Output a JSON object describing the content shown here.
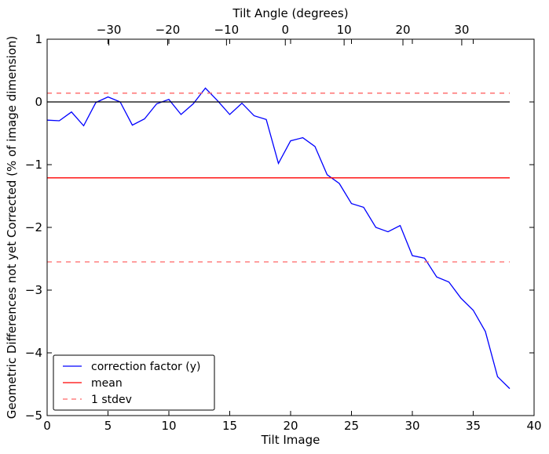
{
  "chart_data": {
    "type": "line",
    "title": "",
    "xlabel": "Tilt Image",
    "ylabel": "Geometric Differences not yet Corrected (% of image dimension)",
    "xlim": [
      0,
      40
    ],
    "ylim": [
      -5,
      1
    ],
    "xticks": [
      0,
      5,
      10,
      15,
      20,
      25,
      30,
      35,
      40
    ],
    "yticks": [
      1,
      0,
      -1,
      -2,
      -3,
      -4,
      -5
    ],
    "top_axis": {
      "label": "Tilt Angle (degrees)",
      "ticks": [
        -30,
        -20,
        -10,
        0,
        10,
        20,
        30
      ],
      "tick_labels": [
        "−30",
        "−20",
        "−10",
        "0",
        "10",
        "20",
        "30"
      ],
      "angle_at_x0": -40.5,
      "degrees_per_image": 2.07
    },
    "grid": false,
    "legend_position": "lower-left",
    "series": [
      {
        "name": "correction factor (y)",
        "color": "#0000ff",
        "style": "solid",
        "x": [
          0,
          1,
          2,
          3,
          4,
          5,
          6,
          7,
          8,
          9,
          10,
          11,
          12,
          13,
          14,
          15,
          16,
          17,
          18,
          19,
          20,
          21,
          22,
          23,
          24,
          25,
          26,
          27,
          28,
          29,
          30,
          31,
          32,
          33,
          34,
          35,
          36,
          37,
          38
        ],
        "y": [
          -0.29,
          -0.3,
          -0.16,
          -0.38,
          -0.01,
          0.08,
          0.0,
          -0.37,
          -0.27,
          -0.03,
          0.04,
          -0.2,
          -0.03,
          0.22,
          0.02,
          -0.2,
          -0.02,
          -0.22,
          -0.28,
          -0.98,
          -0.62,
          -0.57,
          -0.71,
          -1.16,
          -1.3,
          -1.62,
          -1.68,
          -2.0,
          -2.07,
          -1.97,
          -2.45,
          -2.49,
          -2.79,
          -2.87,
          -3.13,
          -3.32,
          -3.66,
          -4.38,
          -4.57
        ]
      },
      {
        "name": "mean",
        "color": "#ff0000",
        "style": "solid",
        "x": [
          0,
          38
        ],
        "y": [
          -1.21,
          -1.21
        ]
      },
      {
        "name": "1 stdev",
        "color": "#ff6666",
        "style": "dashed",
        "x": [
          0,
          38
        ],
        "y": [
          0.14,
          0.14
        ]
      },
      {
        "name": "",
        "color": "#ff6666",
        "style": "dashed",
        "x": [
          0,
          38
        ],
        "y": [
          -2.55,
          -2.55
        ]
      },
      {
        "name": "",
        "color": "#000000",
        "style": "solid",
        "x": [
          0,
          38
        ],
        "y": [
          0,
          0
        ]
      }
    ]
  }
}
